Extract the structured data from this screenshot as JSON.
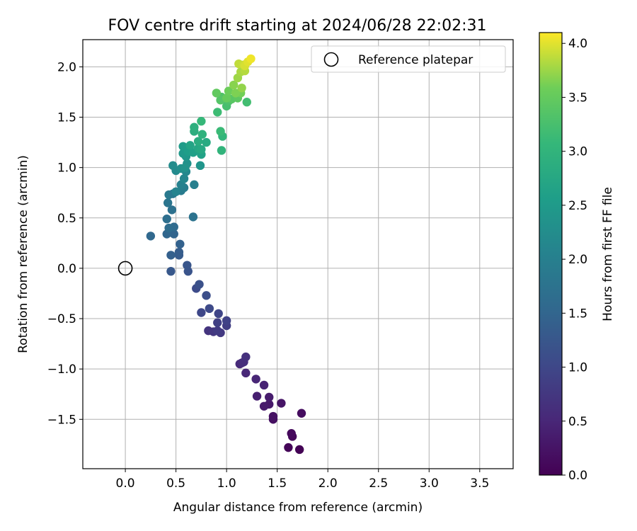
{
  "chart_data": {
    "type": "scatter",
    "title": "FOV centre drift starting at 2024/06/28 22:02:31",
    "xlabel": "Angular distance from reference (arcmin)",
    "ylabel": "Rotation from reference (arcmin)",
    "xlim": [
      -0.42,
      3.83
    ],
    "ylim": [
      -1.99,
      2.27
    ],
    "xticks": [
      0.0,
      0.5,
      1.0,
      1.5,
      2.0,
      2.5,
      3.0,
      3.5
    ],
    "xtick_labels": [
      "0.0",
      "0.5",
      "1.0",
      "1.5",
      "2.0",
      "2.5",
      "3.0",
      "3.5"
    ],
    "yticks": [
      -1.5,
      -1.0,
      -0.5,
      0.0,
      0.5,
      1.0,
      1.5,
      2.0
    ],
    "ytick_labels": [
      "−1.5",
      "−1.0",
      "−0.5",
      "0.0",
      "0.5",
      "1.0",
      "1.5",
      "2.0"
    ],
    "grid": true,
    "colormap": "viridis",
    "colorbar": {
      "label": "Hours from first FF file",
      "range": [
        0.0,
        4.1
      ],
      "ticks": [
        0.0,
        0.5,
        1.0,
        1.5,
        2.0,
        2.5,
        3.0,
        3.5,
        4.0
      ],
      "tick_labels": [
        "0.0",
        "0.5",
        "1.0",
        "1.5",
        "2.0",
        "2.5",
        "3.0",
        "3.5",
        "4.0"
      ]
    },
    "legend": {
      "position": "top-right",
      "entries": [
        {
          "label": "Reference platepar",
          "marker": "open-circle",
          "color": "#000000"
        }
      ]
    },
    "reference_point": {
      "x": 0.0,
      "y": 0.0
    },
    "series": [
      {
        "points": [
          [
            1.72,
            -1.8,
            0.02
          ],
          [
            1.61,
            -1.78,
            0.05
          ],
          [
            1.65,
            -1.67,
            0.08
          ],
          [
            1.64,
            -1.64,
            0.11
          ],
          [
            1.74,
            -1.44,
            0.15
          ],
          [
            1.46,
            -1.5,
            0.18
          ],
          [
            1.46,
            -1.47,
            0.22
          ],
          [
            1.54,
            -1.34,
            0.26
          ],
          [
            1.42,
            -1.35,
            0.3
          ],
          [
            1.37,
            -1.37,
            0.33
          ],
          [
            1.42,
            -1.28,
            0.36
          ],
          [
            1.3,
            -1.27,
            0.4
          ],
          [
            1.37,
            -1.16,
            0.44
          ],
          [
            1.29,
            -1.1,
            0.48
          ],
          [
            1.19,
            -1.04,
            0.52
          ],
          [
            1.13,
            -0.95,
            0.55
          ],
          [
            1.15,
            -0.94,
            0.58
          ],
          [
            1.17,
            -0.93,
            0.62
          ],
          [
            1.19,
            -0.88,
            0.66
          ],
          [
            0.82,
            -0.62,
            0.7
          ],
          [
            0.87,
            -0.63,
            0.74
          ],
          [
            0.94,
            -0.64,
            0.78
          ],
          [
            0.91,
            -0.62,
            0.81
          ],
          [
            1.0,
            -0.57,
            0.85
          ],
          [
            0.91,
            -0.54,
            0.88
          ],
          [
            1.0,
            -0.52,
            0.92
          ],
          [
            0.92,
            -0.45,
            0.96
          ],
          [
            0.75,
            -0.44,
            1.0
          ],
          [
            0.83,
            -0.4,
            1.04
          ],
          [
            0.7,
            -0.2,
            1.08
          ],
          [
            0.8,
            -0.27,
            1.12
          ],
          [
            0.73,
            -0.16,
            1.16
          ],
          [
            0.62,
            -0.03,
            1.2
          ],
          [
            0.61,
            0.03,
            1.24
          ],
          [
            0.45,
            -0.03,
            1.28
          ],
          [
            0.53,
            0.13,
            1.32
          ],
          [
            0.53,
            0.16,
            1.36
          ],
          [
            0.45,
            0.13,
            1.4
          ],
          [
            0.54,
            0.24,
            1.44
          ],
          [
            0.48,
            0.34,
            1.48
          ],
          [
            0.41,
            0.34,
            1.52
          ],
          [
            0.25,
            0.32,
            1.56
          ],
          [
            0.48,
            0.41,
            1.6
          ],
          [
            0.43,
            0.4,
            1.64
          ],
          [
            0.41,
            0.49,
            1.68
          ],
          [
            0.46,
            0.58,
            1.72
          ],
          [
            0.67,
            0.51,
            1.76
          ],
          [
            0.42,
            0.65,
            1.8
          ],
          [
            0.47,
            0.74,
            1.84
          ],
          [
            0.43,
            0.73,
            1.88
          ],
          [
            0.55,
            0.77,
            1.92
          ],
          [
            0.58,
            0.8,
            1.96
          ],
          [
            0.68,
            0.83,
            2.0
          ],
          [
            0.55,
            0.83,
            2.04
          ],
          [
            0.5,
            0.76,
            2.08
          ],
          [
            0.58,
            0.89,
            2.12
          ],
          [
            0.6,
            0.96,
            2.16
          ],
          [
            0.5,
            0.97,
            2.2
          ],
          [
            0.47,
            1.02,
            2.24
          ],
          [
            0.55,
            0.99,
            2.28
          ],
          [
            0.61,
            1.04,
            2.32
          ],
          [
            0.59,
            1.0,
            2.36
          ],
          [
            0.74,
            1.02,
            2.4
          ],
          [
            0.6,
            1.11,
            2.44
          ],
          [
            0.57,
            1.14,
            2.48
          ],
          [
            0.57,
            1.21,
            2.52
          ],
          [
            0.62,
            1.16,
            2.56
          ],
          [
            0.67,
            1.15,
            2.6
          ],
          [
            0.75,
            1.13,
            2.64
          ],
          [
            0.64,
            1.22,
            2.68
          ],
          [
            0.72,
            1.19,
            2.72
          ],
          [
            0.75,
            1.18,
            2.76
          ],
          [
            0.8,
            1.25,
            2.8
          ],
          [
            0.72,
            1.26,
            2.84
          ],
          [
            0.68,
            1.36,
            2.88
          ],
          [
            0.68,
            1.4,
            2.92
          ],
          [
            0.76,
            1.33,
            2.96
          ],
          [
            0.95,
            1.17,
            3.0
          ],
          [
            0.96,
            1.31,
            3.04
          ],
          [
            0.75,
            1.46,
            3.08
          ],
          [
            0.94,
            1.36,
            3.12
          ],
          [
            0.91,
            1.55,
            3.16
          ],
          [
            1.2,
            1.65,
            3.2
          ],
          [
            1.0,
            1.61,
            3.24
          ],
          [
            1.02,
            1.66,
            3.28
          ],
          [
            0.95,
            1.7,
            3.32
          ],
          [
            0.94,
            1.67,
            3.36
          ],
          [
            1.05,
            1.68,
            3.4
          ],
          [
            1.11,
            1.69,
            3.44
          ],
          [
            0.9,
            1.74,
            3.48
          ],
          [
            1.0,
            1.69,
            3.52
          ],
          [
            1.02,
            1.76,
            3.56
          ],
          [
            1.14,
            1.74,
            3.6
          ],
          [
            1.09,
            1.74,
            3.64
          ],
          [
            1.07,
            1.82,
            3.68
          ],
          [
            1.15,
            1.79,
            3.72
          ],
          [
            1.11,
            1.89,
            3.76
          ],
          [
            1.14,
            1.95,
            3.8
          ],
          [
            1.18,
            1.96,
            3.84
          ],
          [
            1.12,
            2.03,
            3.88
          ],
          [
            1.17,
            2.02,
            3.92
          ],
          [
            1.18,
            2.01,
            3.96
          ],
          [
            1.21,
            2.05,
            4.0
          ],
          [
            1.24,
            2.08,
            4.05
          ]
        ],
        "point_format": [
          "x",
          "y",
          "hours"
        ]
      }
    ]
  }
}
